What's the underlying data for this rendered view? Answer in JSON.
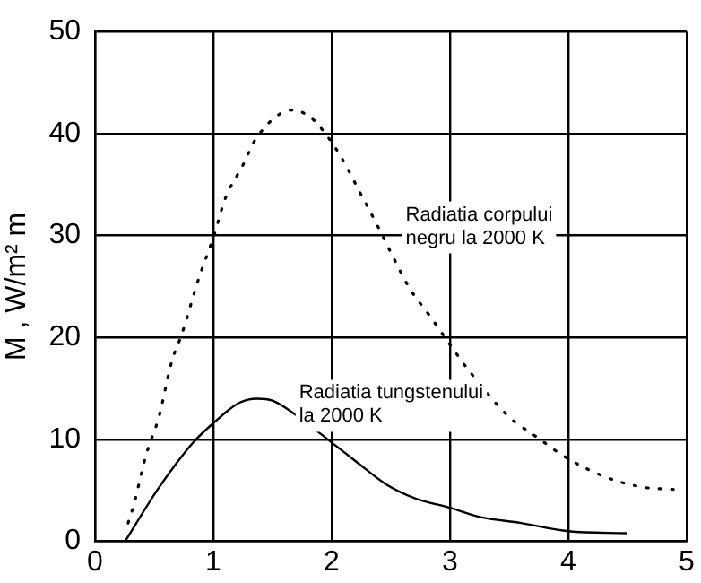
{
  "chart_data": {
    "type": "line",
    "ylabel": "M , W/m² m",
    "xlim": [
      0,
      5
    ],
    "xticks": [
      0,
      1,
      2,
      3,
      4,
      5
    ],
    "ylim": [
      0,
      50
    ],
    "yticks": [
      0,
      10,
      20,
      30,
      40,
      50
    ],
    "grid": true,
    "legend": false,
    "marker": "none",
    "series": [
      {
        "color": "#000000",
        "line_style": "dotted",
        "x": [
          0.28,
          0.33,
          0.43,
          0.54,
          0.65,
          0.73,
          0.88,
          1.0,
          1.1,
          1.25,
          1.36,
          1.67,
          1.82,
          1.94,
          2.09,
          2.24,
          2.39,
          2.51,
          2.66,
          2.83,
          3.0,
          3.15,
          3.5,
          3.7,
          4.0,
          4.34,
          4.64,
          4.89
        ],
        "values": [
          1.8,
          3.7,
          8.4,
          12.2,
          17.7,
          20.2,
          25.9,
          29.8,
          33.6,
          36.9,
          39.5,
          42.3,
          41.6,
          40.1,
          37.5,
          34.2,
          30.9,
          28.1,
          24.8,
          22.1,
          19.3,
          16.9,
          12.2,
          10.5,
          8.1,
          6.2,
          5.3,
          5.1
        ]
      },
      {
        "color": "#000000",
        "line_style": "solid",
        "x": [
          0.26,
          0.53,
          0.83,
          1.0,
          1.22,
          1.37,
          1.5,
          1.72,
          2.0,
          2.21,
          2.46,
          2.71,
          3.0,
          3.25,
          3.6,
          4.0,
          4.49
        ],
        "values": [
          0.1,
          5.1,
          9.7,
          11.6,
          13.6,
          14.0,
          13.8,
          12.2,
          9.7,
          7.8,
          5.6,
          4.2,
          3.3,
          2.4,
          1.8,
          1.0,
          0.8
        ]
      }
    ],
    "annotations": [
      "Radiatia corpului\nnegru la 2000 K",
      "Radiatia tungstenului\nla 2000 K"
    ]
  }
}
